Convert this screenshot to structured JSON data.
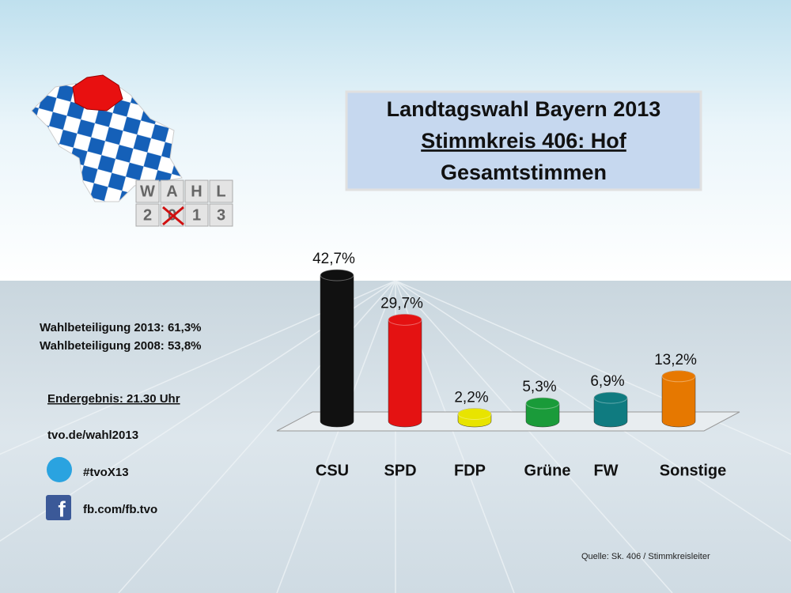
{
  "header": {
    "title": "Landtagswahl Bayern 2013",
    "subtitle": "Stimmkreis 406: Hof",
    "subtitle2": "Gesamtstimmen"
  },
  "logo": {
    "top": "WAHL",
    "bottom": "2013"
  },
  "info": {
    "turnout_2013": "Wahlbeteiligung 2013: 61,3%",
    "turnout_2008": "Wahlbeteiligung 2008: 53,8%",
    "final_result": "Endergebnis: 21.30 Uhr",
    "website": "tvo.de/wahl2013",
    "hashtag": "#tvoX13",
    "facebook": "fb.com/fb.tvo",
    "source": "Quelle: Sk. 406 / Stimmkreisleiter"
  },
  "chart_data": {
    "type": "bar",
    "categories": [
      "CSU",
      "SPD",
      "FDP",
      "Grüne",
      "FW",
      "Sonstige"
    ],
    "values": [
      42.7,
      29.7,
      2.2,
      5.3,
      6.9,
      13.2
    ],
    "value_labels": [
      "42,7%",
      "29,7%",
      "2,2%",
      "5,3%",
      "6,9%",
      "13,2%"
    ],
    "colors": [
      "#111111",
      "#e41212",
      "#e8e400",
      "#1a9b3a",
      "#0f7b80",
      "#e67800"
    ]
  }
}
